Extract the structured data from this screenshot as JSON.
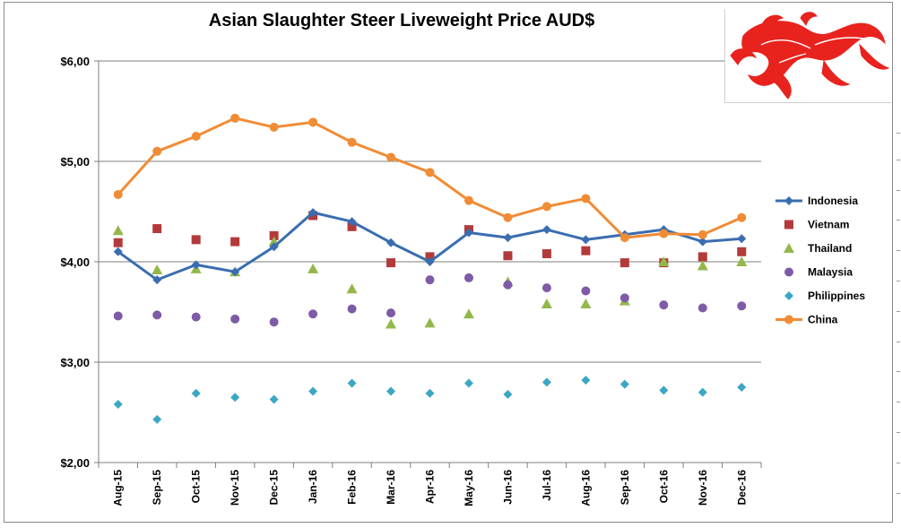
{
  "chart_data": {
    "type": "line",
    "title": "Asian Slaughter Steer Liveweight Price AUD$",
    "categories": [
      "Aug-15",
      "Sep-15",
      "Oct-15",
      "Nov-15",
      "Dec-15",
      "Jan-16",
      "Feb-16",
      "Mar-16",
      "Apr-16",
      "May-16",
      "Jun-16",
      "Jul-16",
      "Aug-16",
      "Sep-16",
      "Oct-16",
      "Nov-16",
      "Dec-16"
    ],
    "ylim": [
      2.0,
      6.0
    ],
    "yticks": [
      2.0,
      3.0,
      4.0,
      5.0,
      6.0
    ],
    "ytick_labels": [
      "$2,00",
      "$3,00",
      "$4,00",
      "$5,00",
      "$6,00"
    ],
    "grid": true,
    "legend_position": "right",
    "series": [
      {
        "name": "Indonesia",
        "style": "line-marker",
        "marker": "diamond",
        "color": "#3a6db0",
        "values": [
          4.1,
          3.82,
          3.97,
          3.9,
          4.15,
          4.49,
          4.4,
          4.19,
          4.0,
          4.29,
          4.24,
          4.32,
          4.22,
          4.27,
          4.32,
          4.2,
          4.23
        ]
      },
      {
        "name": "Vietnam",
        "style": "marker",
        "marker": "square",
        "color": "#b33a3a",
        "values": [
          4.19,
          4.33,
          4.22,
          4.2,
          4.26,
          4.46,
          4.35,
          3.99,
          4.05,
          4.32,
          4.06,
          4.08,
          4.11,
          3.99,
          3.99,
          4.05,
          4.1
        ]
      },
      {
        "name": "Thailand",
        "style": "marker",
        "marker": "triangle",
        "color": "#92b84a",
        "values": [
          4.31,
          3.92,
          3.93,
          3.9,
          4.2,
          3.93,
          3.73,
          3.38,
          3.39,
          3.48,
          3.8,
          3.58,
          3.58,
          3.61,
          4.0,
          3.96,
          4.0
        ]
      },
      {
        "name": "Malaysia",
        "style": "marker",
        "marker": "circle",
        "color": "#7e5ba6",
        "values": [
          3.46,
          3.47,
          3.45,
          3.43,
          3.4,
          3.48,
          3.53,
          3.49,
          3.82,
          3.84,
          3.77,
          3.74,
          3.71,
          3.64,
          3.57,
          3.54,
          3.56
        ]
      },
      {
        "name": "Philippines",
        "style": "marker",
        "marker": "diamond",
        "color": "#3ba7c4",
        "values": [
          2.58,
          2.43,
          2.69,
          2.65,
          2.63,
          2.71,
          2.79,
          2.71,
          2.69,
          2.79,
          2.68,
          2.8,
          2.82,
          2.78,
          2.72,
          2.7,
          2.75
        ]
      },
      {
        "name": "China",
        "style": "line-marker",
        "marker": "circle",
        "color": "#f08c35",
        "values": [
          4.67,
          5.1,
          5.25,
          5.43,
          5.34,
          5.39,
          5.19,
          5.04,
          4.89,
          4.61,
          4.44,
          4.55,
          4.63,
          4.24,
          4.28,
          4.27,
          4.44
        ]
      }
    ]
  },
  "picture": {
    "name": "dragon",
    "color": "#e8231e"
  }
}
